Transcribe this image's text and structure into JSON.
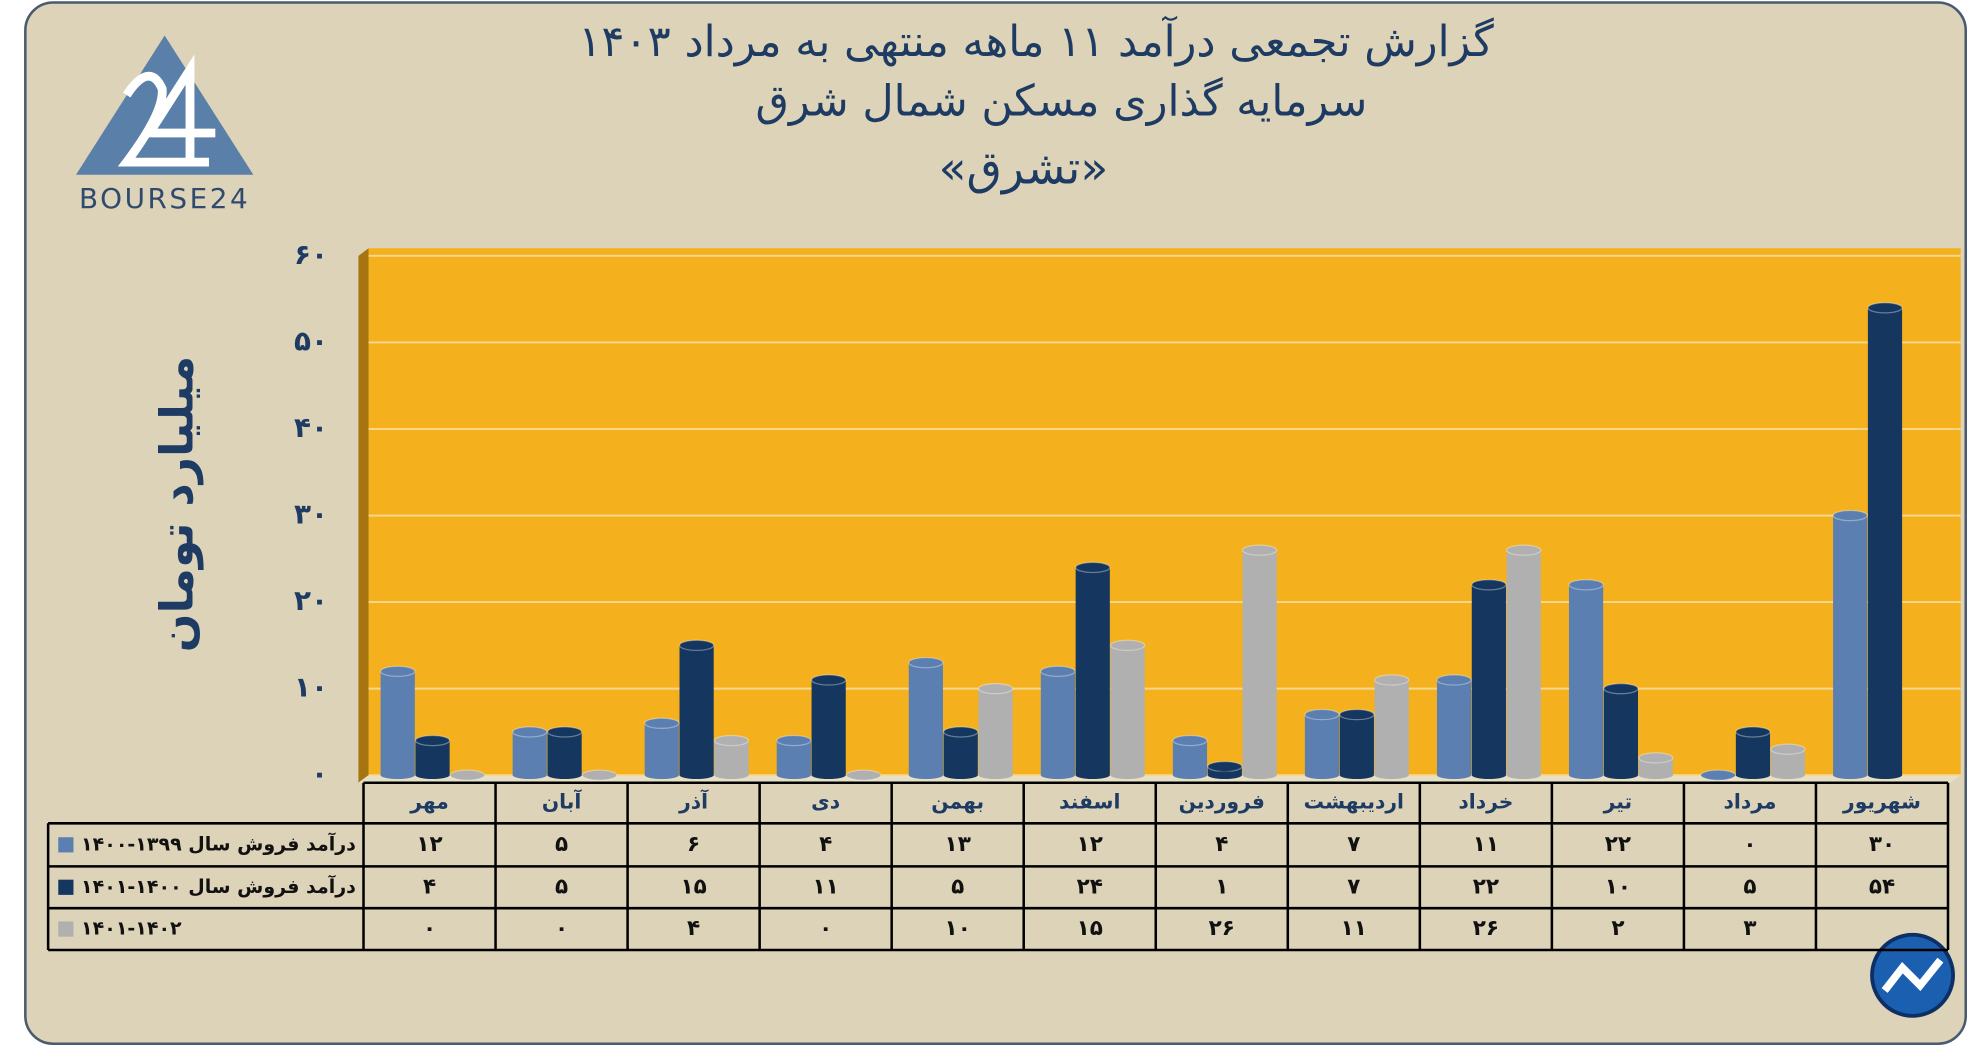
{
  "brand": "BOURSE24",
  "chart_data": {
    "type": "bar",
    "title": "گزارش تجمعی درآمد ۱۱ ماهه منتهی به مرداد ۱۴۰۳",
    "subtitle": "سرمایه گذاری مسکن شمال شرق",
    "subtitle2": "«تشرق»",
    "y_label": "میلیارد تومان",
    "categories": [
      "مهر",
      "آبان",
      "آذر",
      "دی",
      "بهمن",
      "اسفند",
      "فروردین",
      "اردیبهشت",
      "خرداد",
      "تیر",
      "مرداد",
      "شهریور"
    ],
    "series": [
      {
        "name": "درآمد فروش سال ۱۳۹۹-۱۴۰۰",
        "color": "#5a7fb0",
        "values": [
          12,
          5,
          6,
          4,
          13,
          12,
          4,
          7,
          11,
          22,
          0,
          30
        ],
        "value_labels": [
          "۱۲",
          "۵",
          "۶",
          "۴",
          "۱۳",
          "۱۲",
          "۴",
          "۷",
          "۱۱",
          "۲۲",
          "۰",
          "۳۰"
        ]
      },
      {
        "name": "درآمد فروش سال ۱۴۰۰-۱۴۰۱",
        "color": "#15375f",
        "values": [
          4,
          5,
          15,
          11,
          5,
          24,
          1,
          7,
          22,
          10,
          5,
          54
        ],
        "value_labels": [
          "۴",
          "۵",
          "۱۵",
          "۱۱",
          "۵",
          "۲۴",
          "۱",
          "۷",
          "۲۲",
          "۱۰",
          "۵",
          "۵۴"
        ]
      },
      {
        "name": "۱۴۰۱-۱۴۰۲",
        "color": "#b0b0b0",
        "values": [
          0,
          0,
          4,
          0,
          10,
          15,
          26,
          11,
          26,
          2,
          3,
          null
        ],
        "value_labels": [
          "۰",
          "۰",
          "۴",
          "۰",
          "۱۰",
          "۱۵",
          "۲۶",
          "۱۱",
          "۲۶",
          "۲",
          "۳",
          null
        ]
      }
    ],
    "ylim": [
      0,
      60
    ],
    "yticks": [
      {
        "value": 0,
        "label": "۰"
      },
      {
        "value": 10,
        "label": "۱۰"
      },
      {
        "value": 20,
        "label": "۲۰"
      },
      {
        "value": 30,
        "label": "۳۰"
      },
      {
        "value": 40,
        "label": "۴۰"
      },
      {
        "value": 50,
        "label": "۵۰"
      },
      {
        "value": 60,
        "label": "۶۰"
      }
    ],
    "grid": true,
    "plot_color": "#f5b01e"
  }
}
